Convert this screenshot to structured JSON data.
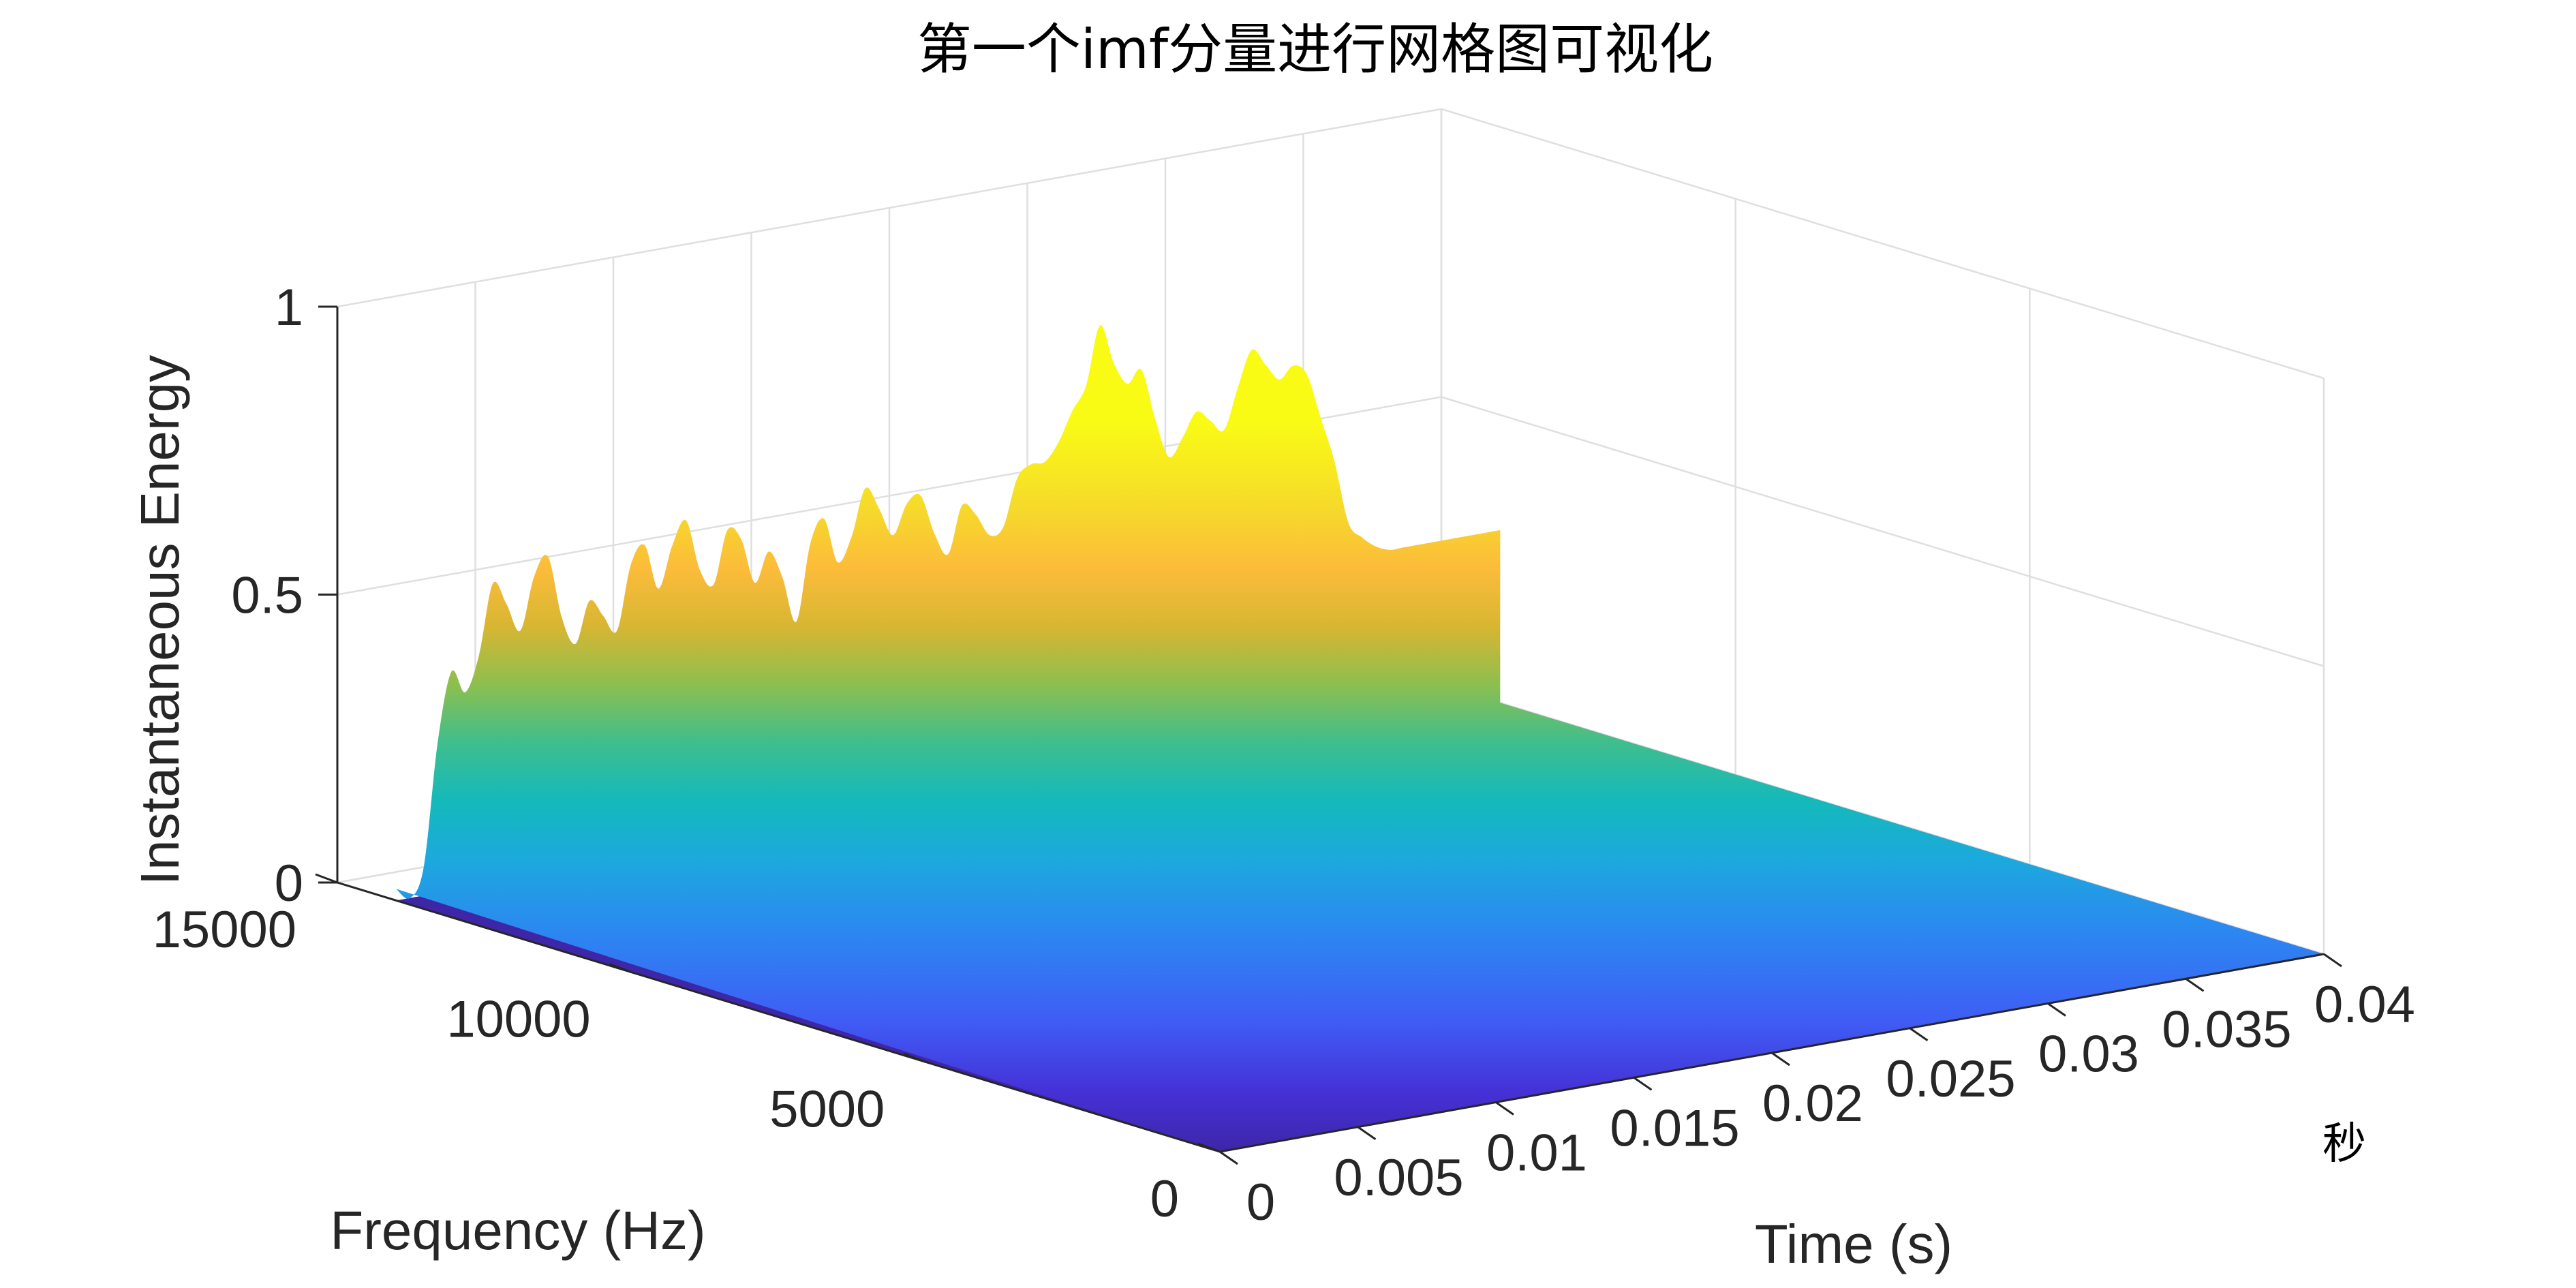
{
  "chart_data": {
    "type": "surface",
    "title": "第一个imf分量进行网格图可视化",
    "xlabel": "Time (s)",
    "ylabel": "Frequency (Hz)",
    "zlabel": "Instantaneous Energy",
    "x_unit_label": "秒",
    "xlim": [
      0,
      0.04
    ],
    "ylim": [
      0,
      15000
    ],
    "zlim": [
      0,
      1
    ],
    "x_ticks": [
      "0",
      "0.005",
      "0.01",
      "0.015",
      "0.02",
      "0.025",
      "0.03",
      "0.035",
      "0.04"
    ],
    "y_ticks": [
      "0",
      "5000",
      "10000",
      "15000"
    ],
    "z_ticks": [
      "0",
      "0.5",
      "1"
    ],
    "grid": true,
    "colormap": "parula",
    "colors": {
      "low": "#3e26a8",
      "mid": "#14b9bb",
      "high": "#f9fb15"
    },
    "surface_extent": {
      "x": [
        0,
        0.04
      ],
      "y": [
        0,
        14000
      ]
    },
    "energy_profile": {
      "t": [
        0,
        0.0005,
        0.001,
        0.0015,
        0.002,
        0.0025,
        0.003,
        0.0035,
        0.004,
        0.0045,
        0.005,
        0.0055,
        0.006,
        0.0065,
        0.007,
        0.0075,
        0.008,
        0.0085,
        0.009,
        0.0095,
        0.01,
        0.0105,
        0.011,
        0.0115,
        0.012,
        0.0125,
        0.013,
        0.0135,
        0.014,
        0.0145,
        0.015,
        0.0155,
        0.016,
        0.0165,
        0.017,
        0.0175,
        0.018,
        0.0185,
        0.019,
        0.0195,
        0.02,
        0.0205,
        0.021,
        0.0215,
        0.022,
        0.0225,
        0.023,
        0.0235,
        0.024,
        0.0245,
        0.025,
        0.0255,
        0.026,
        0.0265,
        0.027,
        0.0275,
        0.028,
        0.0285,
        0.029,
        0.0295,
        0.03,
        0.0305,
        0.031,
        0.0315,
        0.032,
        0.0325,
        0.033,
        0.0335,
        0.034,
        0.0345,
        0.035,
        0.0355,
        0.036,
        0.0365,
        0.037,
        0.0375,
        0.038,
        0.0385,
        0.039,
        0.0395,
        0.04
      ],
      "e": [
        0.02,
        0.0,
        0.05,
        0.26,
        0.38,
        0.34,
        0.4,
        0.52,
        0.48,
        0.43,
        0.52,
        0.55,
        0.44,
        0.39,
        0.46,
        0.43,
        0.4,
        0.51,
        0.54,
        0.46,
        0.53,
        0.57,
        0.48,
        0.45,
        0.54,
        0.52,
        0.44,
        0.49,
        0.44,
        0.36,
        0.49,
        0.53,
        0.45,
        0.49,
        0.57,
        0.53,
        0.48,
        0.53,
        0.54,
        0.47,
        0.43,
        0.51,
        0.49,
        0.45,
        0.46,
        0.54,
        0.56,
        0.56,
        0.59,
        0.64,
        0.68,
        0.78,
        0.71,
        0.67,
        0.69,
        0.6,
        0.53,
        0.56,
        0.6,
        0.58,
        0.56,
        0.63,
        0.69,
        0.66,
        0.63,
        0.65,
        0.63,
        0.55,
        0.47,
        0.36,
        0.33,
        0.31,
        0.3,
        0.3,
        0.3,
        0.3,
        0.3,
        0.3,
        0.3,
        0.3,
        0.3
      ]
    }
  }
}
